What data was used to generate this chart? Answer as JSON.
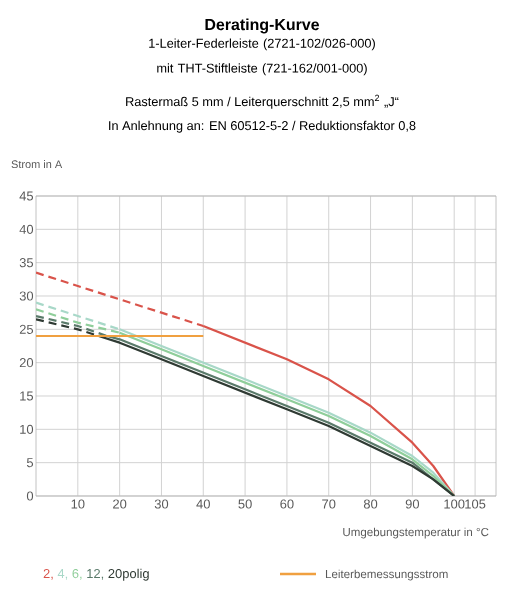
{
  "chart_data": {
    "type": "line",
    "title": "Derating-Kurve",
    "subtitle": "1-Leiter-Federleiste (2721-102/026-000) mit THT-Stiftleiste (721-162/001-000)",
    "annotations": [
      "Rastermaß 5 mm / Leiterquerschnitt 2,5 mm$^{2}$ „J“",
      "In Anlehnung an: EN 60512-5-2 / Reduktionsfaktor 0,8"
    ],
    "xlabel": "Umgebungstemperatur in °C",
    "ylabel": "Strom in A",
    "xlim": [
      0,
      110
    ],
    "ylim": [
      0,
      45
    ],
    "xticks": [
      10,
      20,
      30,
      40,
      50,
      60,
      70,
      80,
      90,
      100,
      105
    ],
    "yticks": [
      0,
      5,
      10,
      15,
      20,
      25,
      30,
      35,
      40,
      45
    ],
    "grid": true,
    "legend": "bottom",
    "marker": "none",
    "series": [
      {
        "color": "#d9534a",
        "line_style": "dashed",
        "x": [
          0,
          10,
          20,
          30,
          40
        ],
        "values": [
          33.5,
          31.5,
          29.5,
          27.5,
          25.5
        ]
      },
      {
        "color": "#a8d8c8",
        "line_style": "dashed",
        "x": [
          0,
          10,
          20
        ],
        "values": [
          29,
          27,
          25
        ]
      },
      {
        "color": "#8fce9a",
        "line_style": "dashed",
        "x": [
          0,
          10,
          20
        ],
        "values": [
          28,
          26,
          24.5
        ]
      },
      {
        "color": "#5a7a6a",
        "line_style": "dashed",
        "x": [
          0,
          10,
          17
        ],
        "values": [
          27,
          25.5,
          24
        ]
      },
      {
        "color": "#2f3a33",
        "line_style": "dashed",
        "x": [
          0,
          10,
          15
        ],
        "values": [
          26.5,
          25,
          24
        ]
      },
      {
        "name": "2,",
        "color": "#d9534a",
        "line_style": "solid",
        "x": [
          40,
          50,
          60,
          70,
          80,
          90,
          95,
          100
        ],
        "values": [
          25.5,
          23,
          20.5,
          17.5,
          13.5,
          8,
          4.5,
          0
        ]
      },
      {
        "name": "4,",
        "color": "#a8d8c8",
        "line_style": "solid",
        "x": [
          20,
          30,
          40,
          50,
          60,
          70,
          80,
          90,
          95,
          100
        ],
        "values": [
          25,
          22.5,
          20,
          17.5,
          15,
          12.5,
          9.5,
          6,
          3.5,
          0
        ]
      },
      {
        "name": "6,",
        "color": "#8fce9a",
        "line_style": "solid",
        "x": [
          20,
          30,
          40,
          50,
          60,
          70,
          80,
          90,
          95,
          100
        ],
        "values": [
          24.5,
          22,
          19.5,
          17,
          14.5,
          12,
          9,
          5.5,
          3,
          0
        ]
      },
      {
        "name": "12,",
        "color": "#5a7a6a",
        "line_style": "solid",
        "x": [
          17,
          20,
          30,
          40,
          50,
          60,
          70,
          80,
          90,
          95,
          100
        ],
        "values": [
          24,
          23.5,
          21,
          18.5,
          16,
          13.5,
          11,
          8,
          5,
          2.5,
          0
        ]
      },
      {
        "name": "20polig",
        "color": "#2f3a33",
        "line_style": "solid",
        "x": [
          15,
          20,
          30,
          40,
          50,
          60,
          70,
          80,
          90,
          95,
          100
        ],
        "values": [
          24,
          23,
          20.5,
          18,
          15.5,
          13,
          10.5,
          7.5,
          4.5,
          2.5,
          0
        ]
      },
      {
        "name": "Leiterbemessungsstrom",
        "color": "#f0a040",
        "line_style": "solid",
        "x": [
          0,
          40
        ],
        "values": [
          24,
          24
        ]
      }
    ]
  }
}
